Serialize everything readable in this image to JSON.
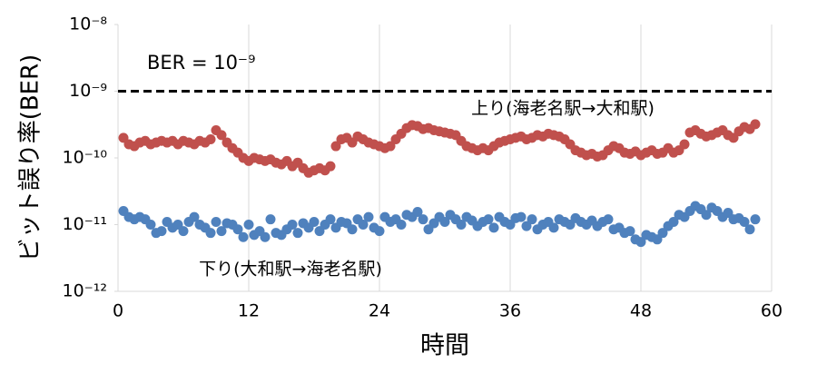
{
  "chart_data": {
    "type": "scatter",
    "xlabel": "時間",
    "ylabel": "ビット誤り率(BER)",
    "annotation": "BER = 10⁻⁹",
    "threshold": 1e-09,
    "xlim": [
      0,
      60
    ],
    "xticks": [
      0,
      12,
      24,
      36,
      48,
      60
    ],
    "ylim": [
      1e-12,
      1e-08
    ],
    "log_y": true,
    "grid": true,
    "yticks": [
      {
        "value": 1e-12,
        "label": "10⁻¹²"
      },
      {
        "value": 1e-11,
        "label": "10⁻¹¹"
      },
      {
        "value": 1e-10,
        "label": "10⁻¹⁰"
      },
      {
        "value": 1e-09,
        "label": "10⁻⁹"
      },
      {
        "value": 1e-08,
        "label": "10⁻⁸"
      }
    ],
    "x": [
      0.5,
      1,
      1.5,
      2,
      2.5,
      3,
      3.5,
      4,
      4.5,
      5,
      5.5,
      6,
      6.5,
      7,
      7.5,
      8,
      8.5,
      9,
      9.5,
      10,
      10.5,
      11,
      11.5,
      12,
      12.5,
      13,
      13.5,
      14,
      14.5,
      15,
      15.5,
      16,
      16.5,
      17,
      17.5,
      18,
      18.5,
      19,
      19.5,
      20,
      20.5,
      21,
      21.5,
      22,
      22.5,
      23,
      23.5,
      24,
      24.5,
      25,
      25.5,
      26,
      26.5,
      27,
      27.5,
      28,
      28.5,
      29,
      29.5,
      30,
      30.5,
      31,
      31.5,
      32,
      32.5,
      33,
      33.5,
      34,
      34.5,
      35,
      35.5,
      36,
      36.5,
      37,
      37.5,
      38,
      38.5,
      39,
      39.5,
      40,
      40.5,
      41,
      41.5,
      42,
      42.5,
      43,
      43.5,
      44,
      44.5,
      45,
      45.5,
      46,
      46.5,
      47,
      47.5,
      48,
      48.5,
      49,
      49.5,
      50,
      50.5,
      51,
      51.5,
      52,
      52.5,
      53,
      53.5,
      54,
      54.5,
      55,
      55.5,
      56,
      56.5,
      57,
      57.5,
      58,
      58.5
    ],
    "series": [
      {
        "name": "上り(海老名駅→大和駅)",
        "color": "#c0504d",
        "values": [
          2e-10,
          1.6e-10,
          1.5e-10,
          1.7e-10,
          1.8e-10,
          1.6e-10,
          1.7e-10,
          1.8e-10,
          1.7e-10,
          1.8e-10,
          1.6e-10,
          1.8e-10,
          1.7e-10,
          1.6e-10,
          1.8e-10,
          1.7e-10,
          1.9e-10,
          2.6e-10,
          2.2e-10,
          1.7e-10,
          1.4e-10,
          1.2e-10,
          1e-10,
          9e-11,
          1e-10,
          9.5e-11,
          9e-11,
          9.5e-11,
          8.5e-11,
          8e-11,
          9e-11,
          7.5e-11,
          8.5e-11,
          7e-11,
          6e-11,
          6.5e-11,
          7e-11,
          6.5e-11,
          7.5e-11,
          1.5e-10,
          1.9e-10,
          2e-10,
          1.7e-10,
          2.1e-10,
          1.9e-10,
          1.7e-10,
          1.6e-10,
          1.5e-10,
          1.4e-10,
          1.5e-10,
          1.9e-10,
          2.3e-10,
          2.8e-10,
          3.1e-10,
          3e-10,
          2.7e-10,
          2.8e-10,
          2.6e-10,
          2.5e-10,
          2.4e-10,
          2.3e-10,
          2.2e-10,
          1.8e-10,
          1.5e-10,
          1.4e-10,
          1.3e-10,
          1.4e-10,
          1.3e-10,
          1.5e-10,
          1.7e-10,
          1.8e-10,
          1.9e-10,
          2e-10,
          2.1e-10,
          1.9e-10,
          2e-10,
          2.2e-10,
          2.1e-10,
          2.3e-10,
          2.2e-10,
          2.1e-10,
          1.9e-10,
          1.6e-10,
          1.3e-10,
          1.2e-10,
          1.1e-10,
          1.15e-10,
          1.05e-10,
          1.1e-10,
          1.3e-10,
          1.5e-10,
          1.4e-10,
          1.2e-10,
          1.15e-10,
          1.25e-10,
          1.1e-10,
          1.2e-10,
          1.3e-10,
          1.15e-10,
          1.2e-10,
          1.4e-10,
          1.2e-10,
          1.3e-10,
          1.6e-10,
          2.4e-10,
          2.6e-10,
          2.3e-10,
          2.1e-10,
          2.2e-10,
          2.4e-10,
          2.6e-10,
          2.2e-10,
          2e-10,
          2.5e-10,
          2.9e-10,
          2.7e-10,
          3.2e-10
        ]
      },
      {
        "name": "下り(大和駅→海老名駅)",
        "color": "#4f81bd",
        "values": [
          1.6e-11,
          1.3e-11,
          1.2e-11,
          1.3e-11,
          1.2e-11,
          1e-11,
          7.5e-12,
          8e-12,
          1.1e-11,
          9e-12,
          1e-11,
          8e-12,
          1.1e-11,
          1.3e-11,
          1e-11,
          9e-12,
          7.5e-12,
          1.1e-11,
          8e-12,
          1.05e-11,
          1e-11,
          8.5e-12,
          6.5e-12,
          1e-11,
          7e-12,
          8e-12,
          6.5e-12,
          1.2e-11,
          7.5e-12,
          7e-12,
          8.5e-12,
          1e-11,
          7.5e-12,
          1.05e-11,
          9e-12,
          1.1e-11,
          8e-12,
          1e-11,
          1.2e-11,
          9e-12,
          1.1e-11,
          1.05e-11,
          8.5e-12,
          1.2e-11,
          1e-11,
          1.3e-11,
          9e-12,
          8e-12,
          1.3e-11,
          1.1e-11,
          1.2e-11,
          1e-11,
          1.4e-11,
          1.3e-11,
          1.55e-11,
          1.2e-11,
          8.5e-12,
          1.05e-11,
          1.3e-11,
          1.1e-11,
          1.4e-11,
          1.2e-11,
          1e-11,
          1.3e-11,
          1.15e-11,
          9.5e-12,
          1.1e-11,
          1.2e-11,
          9e-12,
          1.3e-11,
          1.1e-11,
          1e-11,
          1.25e-11,
          1.3e-11,
          9.5e-12,
          1.2e-11,
          8.5e-12,
          1e-11,
          1.1e-11,
          9e-12,
          1.2e-11,
          1.1e-11,
          1e-11,
          1.25e-11,
          1.1e-11,
          1e-11,
          1.15e-11,
          9.5e-12,
          1.1e-11,
          1.2e-11,
          8.5e-12,
          9e-12,
          7.5e-12,
          8e-12,
          6e-12,
          5.5e-12,
          7e-12,
          6.5e-12,
          6e-12,
          7.5e-12,
          9.5e-12,
          1.1e-11,
          1.4e-11,
          1.3e-11,
          1.6e-11,
          1.9e-11,
          1.7e-11,
          1.4e-11,
          1.8e-11,
          1.6e-11,
          1.3e-11,
          1.5e-11,
          1.2e-11,
          1.25e-11,
          1.1e-11,
          8.5e-12,
          1.2e-11
        ]
      }
    ]
  }
}
